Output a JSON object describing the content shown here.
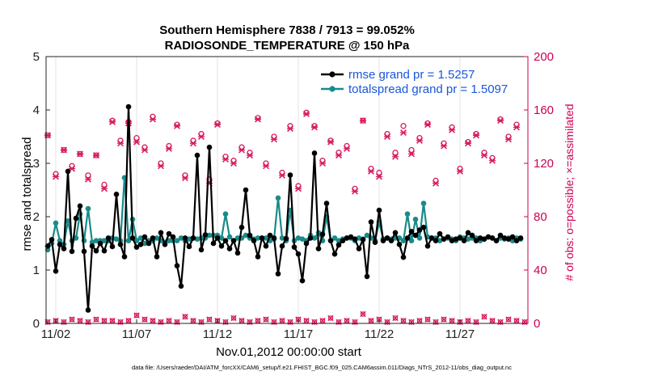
{
  "chart_data": {
    "type": "line",
    "title_line1": "Southern Hemisphere 7838 / 7913 = 99.052%",
    "title_line2": "RADIOSONDE_TEMPERATURE @ 150 hPa",
    "xlabel": "Nov.01,2012 00:00:00 start",
    "ylabel": "rmse and totalspread",
    "y2label": "# of obs: o=possible; ×=assimilated",
    "footer": "data file: /Users/raeder/DAI/ATM_forcXX/CAM6_setup/f.e21.FHIST_BGC.f09_025.CAM6assim.011/Diags_NTrS_2012-11/obs_diag_output.nc",
    "xlim": [
      1.4,
      31.2
    ],
    "ylim": [
      0,
      5
    ],
    "y2lim": [
      0,
      200
    ],
    "yticks": [
      "0",
      "1",
      "2",
      "3",
      "4",
      "5"
    ],
    "y2ticks": [
      "0",
      "40",
      "80",
      "120",
      "160",
      "200"
    ],
    "xticks": [
      {
        "x": 2,
        "label": "11/02"
      },
      {
        "x": 7,
        "label": "11/07"
      },
      {
        "x": 12,
        "label": "11/12"
      },
      {
        "x": 17,
        "label": "11/17"
      },
      {
        "x": 22,
        "label": "11/22"
      },
      {
        "x": 27,
        "label": "11/27"
      }
    ],
    "colors": {
      "rmse": "#000000",
      "spread": "#1a8a8a",
      "obs": "#d81b60",
      "legend_text": "#1a56db"
    },
    "legend": {
      "placement": "top-right",
      "rmse_label": "rmse grand pr = 1.5257",
      "spread_label": "totalspread grand pr = 1.5097"
    },
    "series": [
      {
        "name": "rmse",
        "x": [
          1.5,
          1.75,
          2.0,
          2.25,
          2.5,
          2.75,
          3.0,
          3.25,
          3.5,
          3.75,
          4.0,
          4.25,
          4.5,
          4.75,
          5.0,
          5.25,
          5.5,
          5.75,
          6.0,
          6.25,
          6.5,
          6.75,
          7.0,
          7.25,
          7.5,
          7.75,
          8.0,
          8.25,
          8.5,
          8.75,
          9.0,
          9.25,
          9.5,
          9.75,
          10.0,
          10.25,
          10.5,
          10.75,
          11.0,
          11.25,
          11.5,
          11.75,
          12.0,
          12.25,
          12.5,
          12.75,
          13.0,
          13.25,
          13.5,
          13.75,
          14.0,
          14.25,
          14.5,
          14.75,
          15.0,
          15.25,
          15.5,
          15.75,
          16.0,
          16.25,
          16.5,
          16.75,
          17.0,
          17.25,
          17.5,
          17.75,
          18.0,
          18.25,
          18.5,
          18.75,
          19.0,
          19.25,
          19.5,
          19.75,
          20.0,
          20.25,
          20.5,
          20.75,
          21.0,
          21.25,
          21.5,
          21.75,
          22.0,
          22.25,
          22.5,
          22.75,
          23.0,
          23.25,
          23.5,
          23.75,
          24.0,
          24.25,
          24.5,
          24.75,
          25.0,
          25.25,
          25.5,
          25.75,
          26.0,
          26.25,
          26.5,
          26.75,
          27.0,
          27.25,
          27.5,
          27.75,
          28.0,
          28.25,
          28.5,
          28.75,
          29.0,
          29.25,
          29.5,
          29.75,
          30.0,
          30.25,
          30.5,
          30.75
        ],
        "values": [
          1.45,
          1.57,
          0.98,
          1.48,
          1.4,
          2.85,
          1.35,
          1.97,
          2.2,
          1.35,
          0.25,
          1.45,
          1.36,
          1.5,
          1.36,
          1.6,
          1.44,
          2.42,
          1.48,
          1.25,
          4.06,
          1.6,
          1.43,
          1.48,
          1.62,
          1.5,
          1.6,
          1.25,
          1.7,
          1.48,
          1.68,
          1.62,
          1.08,
          0.7,
          1.6,
          1.44,
          1.6,
          3.15,
          1.38,
          1.66,
          3.3,
          1.5,
          1.6,
          1.45,
          1.55,
          1.4,
          1.55,
          1.32,
          1.8,
          2.5,
          1.65,
          1.55,
          1.25,
          1.6,
          1.45,
          1.65,
          1.6,
          0.93,
          1.45,
          1.59,
          2.78,
          1.43,
          1.3,
          0.8,
          1.5,
          1.6,
          3.19,
          1.4,
          1.67,
          2.25,
          1.55,
          1.3,
          1.47,
          1.55,
          1.6,
          1.62,
          1.58,
          1.4,
          1.57,
          0.88,
          1.9,
          1.52,
          2.12,
          1.55,
          1.6,
          1.55,
          1.7,
          1.48,
          1.24,
          1.6,
          1.72,
          1.65,
          1.75,
          1.8,
          1.45,
          1.6,
          1.55,
          1.68,
          1.58,
          1.62,
          1.55,
          1.58,
          1.6,
          1.55,
          1.7,
          1.65,
          1.55,
          1.6,
          1.58,
          1.62,
          1.6,
          1.55,
          1.65,
          1.6,
          1.58,
          1.62,
          1.55,
          1.6
        ]
      },
      {
        "name": "totalspread",
        "x": [
          1.5,
          1.75,
          2.0,
          2.25,
          2.5,
          2.75,
          3.0,
          3.25,
          3.5,
          3.75,
          4.0,
          4.25,
          4.5,
          4.75,
          5.0,
          5.25,
          5.5,
          5.75,
          6.0,
          6.25,
          6.5,
          6.75,
          7.0,
          7.25,
          7.5,
          7.75,
          8.0,
          8.25,
          8.5,
          8.75,
          9.0,
          9.25,
          9.5,
          9.75,
          10.0,
          10.25,
          10.5,
          10.75,
          11.0,
          11.25,
          11.5,
          11.75,
          12.0,
          12.25,
          12.5,
          12.75,
          13.0,
          13.25,
          13.5,
          13.75,
          14.0,
          14.25,
          14.5,
          14.75,
          15.0,
          15.25,
          15.5,
          15.75,
          16.0,
          16.25,
          16.5,
          16.75,
          17.0,
          17.25,
          17.5,
          17.75,
          18.0,
          18.25,
          18.5,
          18.75,
          19.0,
          19.25,
          19.5,
          19.75,
          20.0,
          20.25,
          20.5,
          20.75,
          21.0,
          21.25,
          21.5,
          21.75,
          22.0,
          22.25,
          22.5,
          22.75,
          23.0,
          23.25,
          23.5,
          23.75,
          24.0,
          24.25,
          24.5,
          24.75,
          25.0,
          25.25,
          25.5,
          25.75,
          26.0,
          26.25,
          26.5,
          26.75,
          27.0,
          27.25,
          27.5,
          27.75,
          28.0,
          28.25,
          28.5,
          28.75,
          29.0,
          29.25,
          29.5,
          29.75,
          30.0,
          30.25,
          30.5,
          30.75
        ],
        "values": [
          1.38,
          1.5,
          1.88,
          1.55,
          1.48,
          1.92,
          1.55,
          1.6,
          2.05,
          1.55,
          2.15,
          1.52,
          1.55,
          1.55,
          1.55,
          1.55,
          1.6,
          1.58,
          1.55,
          2.73,
          1.55,
          1.95,
          1.55,
          1.6,
          1.5,
          1.55,
          1.55,
          1.6,
          1.55,
          1.52,
          1.55,
          1.55,
          1.55,
          1.6,
          1.55,
          1.58,
          1.6,
          1.58,
          1.6,
          1.6,
          1.65,
          1.65,
          1.65,
          1.6,
          2.05,
          1.62,
          1.55,
          1.6,
          1.6,
          1.65,
          1.6,
          1.58,
          1.6,
          1.6,
          1.6,
          1.55,
          1.58,
          2.35,
          1.6,
          1.55,
          2.12,
          1.55,
          1.6,
          1.58,
          1.55,
          1.65,
          1.6,
          1.7,
          1.55,
          2.0,
          1.55,
          1.6,
          1.55,
          1.58,
          1.6,
          1.6,
          1.55,
          1.6,
          1.58,
          1.65,
          1.6,
          1.55,
          1.9,
          1.58,
          1.6,
          1.58,
          1.6,
          1.6,
          1.55,
          2.05,
          1.55,
          1.95,
          1.6,
          2.25,
          1.62,
          1.6,
          1.6,
          1.55,
          1.58,
          1.6,
          1.58,
          1.55,
          1.62,
          1.6,
          1.58,
          1.6,
          1.6,
          1.55,
          1.58,
          1.62,
          1.6,
          1.55,
          1.6,
          1.58,
          1.6,
          1.55,
          1.6,
          1.58
        ]
      },
      {
        "name": "obs_possible",
        "x": [
          1.5,
          2.0,
          2.5,
          3.0,
          3.5,
          4.0,
          4.5,
          5.0,
          5.5,
          6.0,
          6.5,
          7.0,
          7.5,
          8.0,
          8.5,
          9.0,
          9.5,
          10.0,
          10.5,
          11.0,
          11.5,
          12.0,
          12.5,
          13.0,
          13.5,
          14.0,
          14.5,
          15.0,
          15.5,
          16.0,
          16.5,
          17.0,
          17.5,
          18.0,
          18.5,
          19.0,
          19.5,
          20.0,
          20.5,
          21.0,
          21.5,
          22.0,
          22.5,
          23.0,
          23.5,
          24.0,
          24.5,
          25.0,
          25.5,
          26.0,
          26.5,
          27.0,
          27.5,
          28.0,
          28.5,
          29.0,
          29.5,
          30.0,
          30.5
        ],
        "values": [
          141,
          112,
          130,
          118,
          127,
          111,
          126,
          104,
          152,
          137,
          151,
          139,
          132,
          155,
          120,
          133,
          149,
          111,
          137,
          142,
          108,
          150,
          125,
          122,
          132,
          128,
          154,
          120,
          140,
          113,
          148,
          103,
          158,
          148,
          122,
          137,
          128,
          133,
          101,
          152,
          116,
          113,
          142,
          128,
          148,
          130,
          139,
          150,
          107,
          135,
          147,
          116,
          136,
          142,
          128,
          124,
          153,
          140,
          149
        ]
      },
      {
        "name": "obs_assimilated",
        "x": [
          1.5,
          2.0,
          2.5,
          3.0,
          3.5,
          4.0,
          4.5,
          5.0,
          5.5,
          6.0,
          6.5,
          7.0,
          7.5,
          8.0,
          8.5,
          9.0,
          9.5,
          10.0,
          10.5,
          11.0,
          11.5,
          12.0,
          12.5,
          13.0,
          13.5,
          14.0,
          14.5,
          15.0,
          15.5,
          16.0,
          16.5,
          17.0,
          17.5,
          18.0,
          18.5,
          19.0,
          19.5,
          20.0,
          20.5,
          21.0,
          21.5,
          22.0,
          22.5,
          23.0,
          23.5,
          24.0,
          24.5,
          25.0,
          25.5,
          26.0,
          26.5,
          27.0,
          27.5,
          28.0,
          28.5,
          29.0,
          29.5,
          30.0,
          30.5
        ],
        "values": [
          141,
          110,
          130,
          116,
          127,
          108,
          126,
          101,
          151,
          135,
          150,
          136,
          130,
          153,
          118,
          131,
          148,
          109,
          135,
          140,
          105,
          149,
          123,
          120,
          130,
          126,
          153,
          118,
          138,
          111,
          146,
          101,
          157,
          147,
          120,
          136,
          126,
          131,
          99,
          152,
          114,
          110,
          140,
          125,
          143,
          127,
          137,
          149,
          105,
          133,
          145,
          114,
          135,
          141,
          126,
          122,
          152,
          138,
          147
        ]
      },
      {
        "name": "obs_low",
        "x": [
          1.5,
          2.0,
          2.5,
          3.0,
          3.5,
          4.0,
          4.5,
          5.0,
          5.5,
          6.0,
          6.5,
          7.0,
          7.5,
          8.0,
          8.5,
          9.0,
          9.5,
          10.0,
          10.5,
          11.0,
          11.5,
          12.0,
          12.5,
          13.0,
          13.5,
          14.0,
          14.5,
          15.0,
          15.5,
          16.0,
          16.5,
          17.0,
          17.5,
          18.0,
          18.5,
          19.0,
          19.5,
          20.0,
          20.5,
          21.0,
          21.5,
          22.0,
          22.5,
          23.0,
          23.5,
          24.0,
          24.5,
          25.0,
          25.5,
          26.0,
          26.5,
          27.0,
          27.5,
          28.0,
          28.5,
          29.0,
          29.5,
          30.0,
          30.5,
          31.0
        ],
        "values": [
          1,
          2,
          1,
          3,
          2,
          1,
          3,
          2,
          2,
          1,
          2,
          6,
          3,
          2,
          1,
          2,
          1,
          5,
          2,
          1,
          3,
          2,
          1,
          4,
          2,
          1,
          2,
          3,
          1,
          2,
          1,
          3,
          2,
          1,
          2,
          4,
          1,
          2,
          1,
          7,
          2,
          3,
          1,
          4,
          2,
          1,
          2,
          3,
          1,
          3,
          2,
          1,
          2,
          1,
          5,
          2,
          1,
          3,
          2,
          1
        ]
      }
    ]
  }
}
